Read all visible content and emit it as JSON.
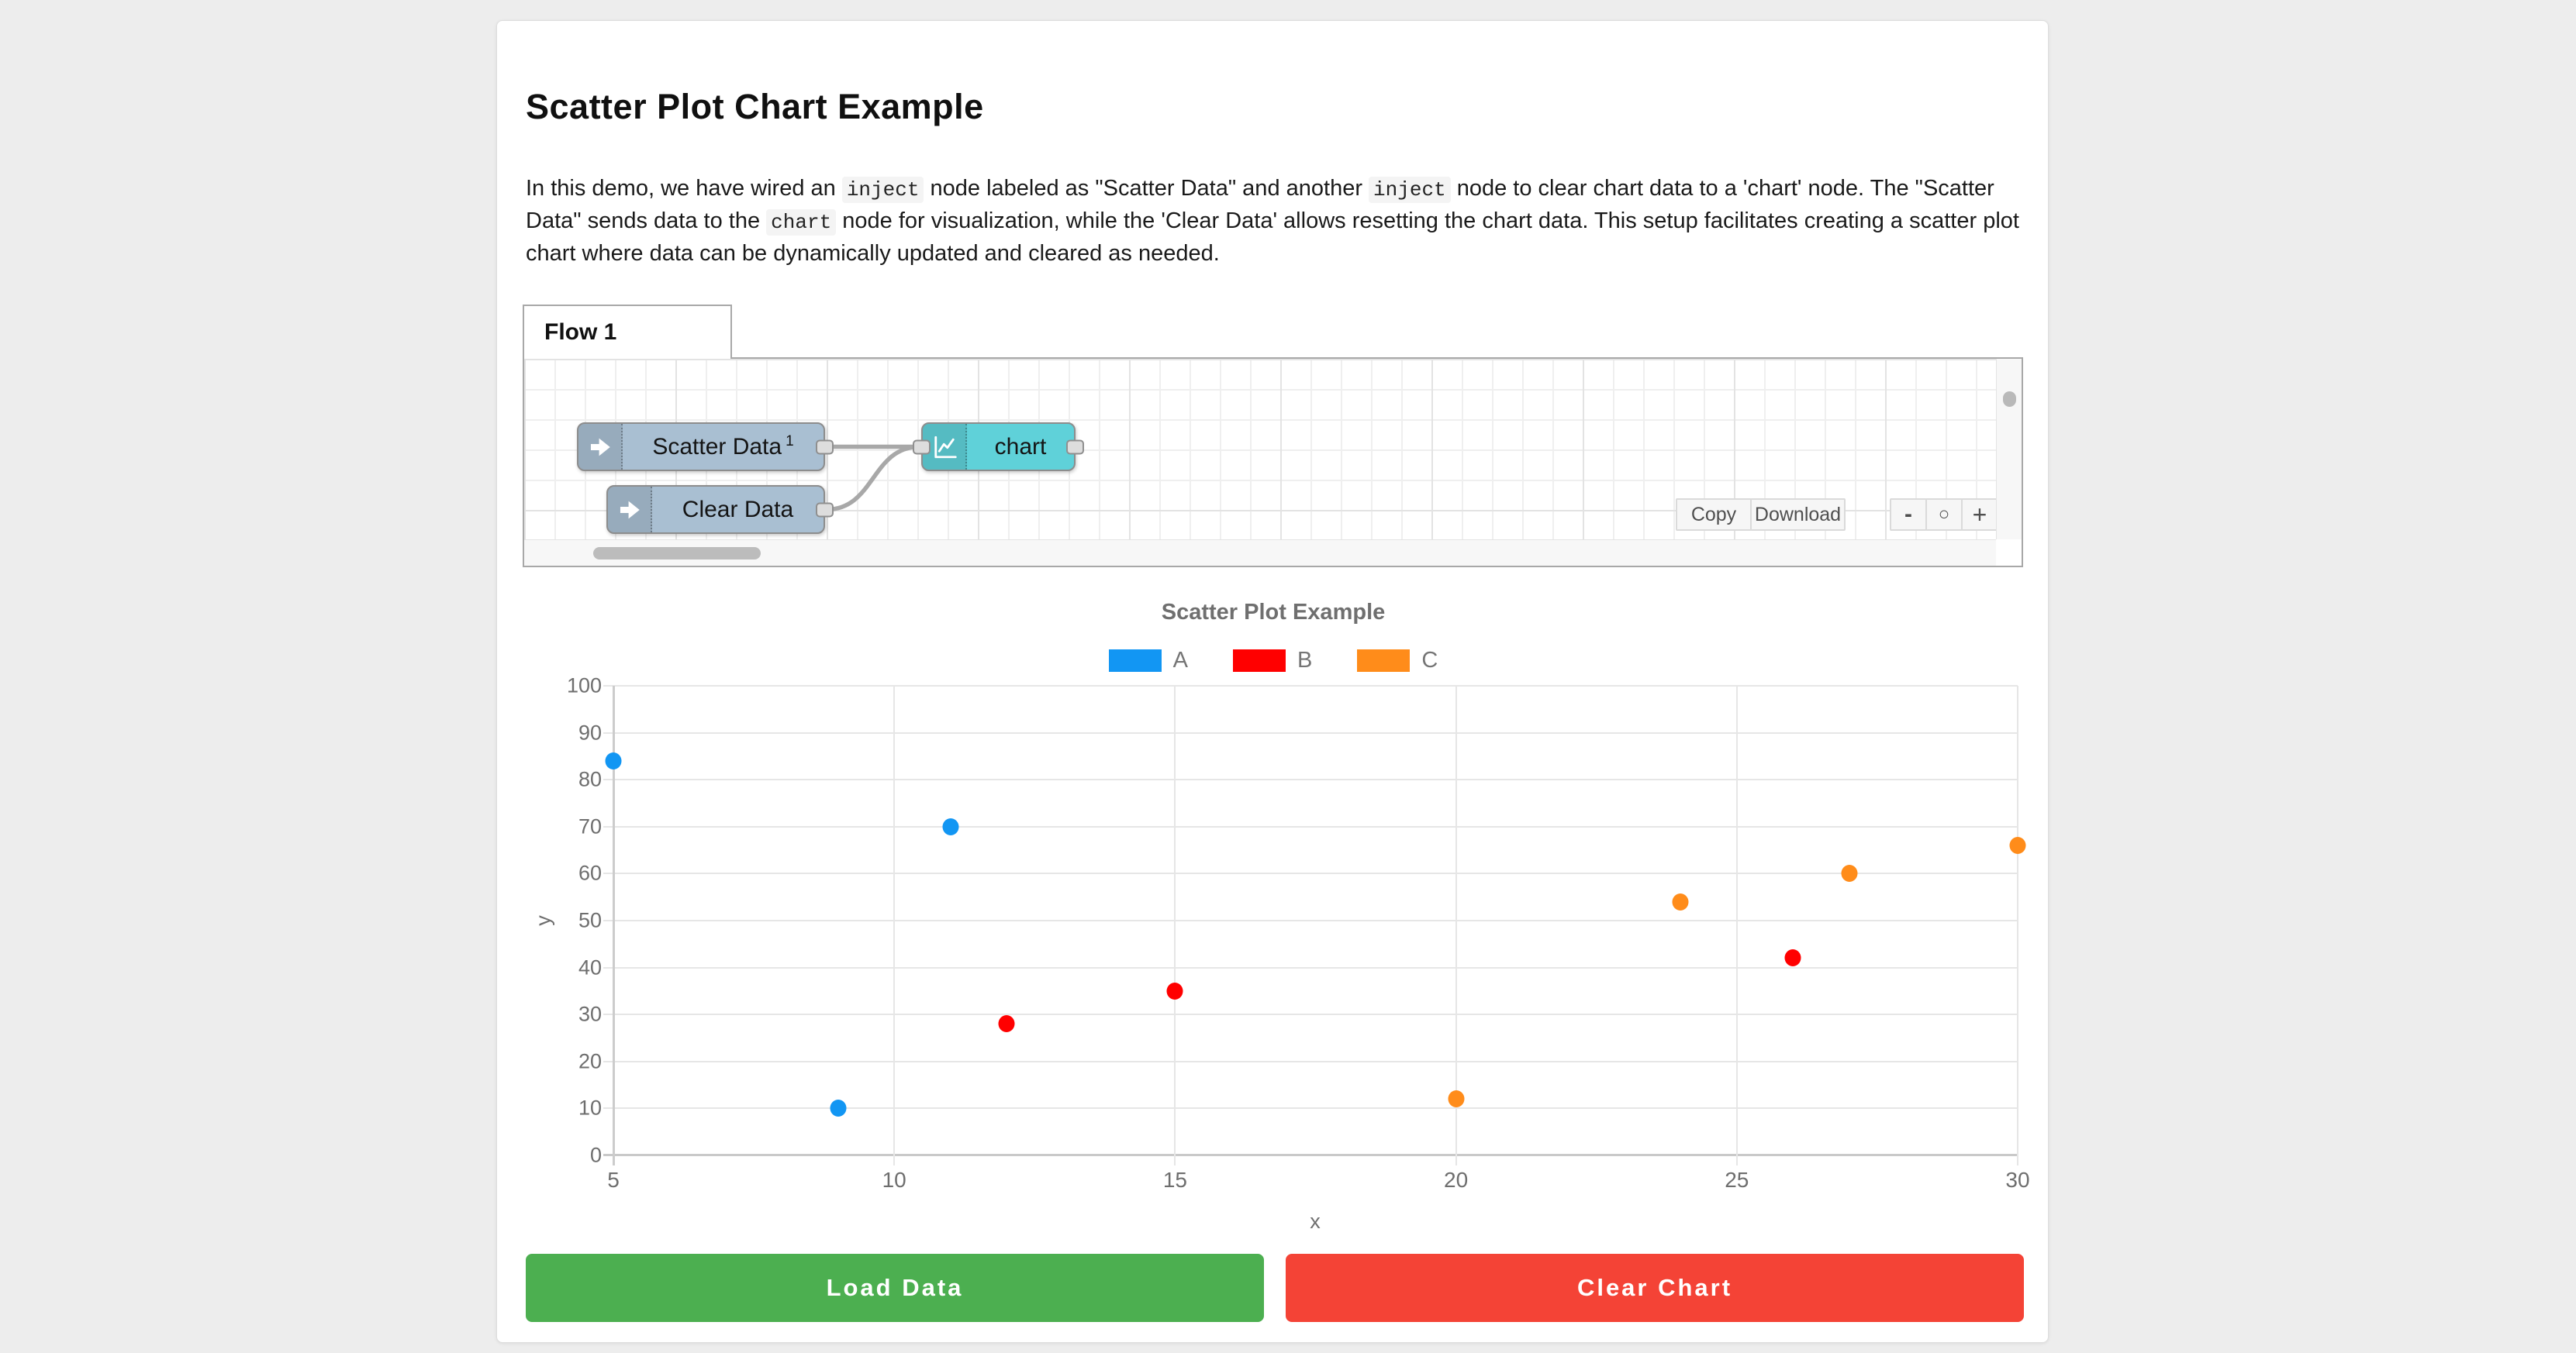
{
  "window": {
    "bg": "#ededed",
    "card_bg": "#ffffff"
  },
  "header": {
    "title": "Scatter Plot Chart Example"
  },
  "description": {
    "segments": [
      {
        "type": "text",
        "value": "In this demo, we have wired an "
      },
      {
        "type": "code",
        "value": "inject"
      },
      {
        "type": "text",
        "value": " node labeled as \"Scatter Data\" and another "
      },
      {
        "type": "code",
        "value": "inject"
      },
      {
        "type": "text",
        "value": " node to clear chart data to a 'chart' node. The \"Scatter Data\" sends data to the "
      },
      {
        "type": "code",
        "value": "chart"
      },
      {
        "type": "text",
        "value": " node for visualization, while the 'Clear Data' allows resetting the chart data. This setup facilitates creating a scatter plot chart where data can be dynamically updated and cleared as needed."
      }
    ]
  },
  "flow_panel": {
    "tab_label": "Flow 1",
    "nodes": {
      "scatter": {
        "label": "Scatter Data",
        "sup": "1",
        "color": "#a9bfd2",
        "type": "inject"
      },
      "clear": {
        "label": "Clear Data",
        "color": "#a9bfd2",
        "type": "inject"
      },
      "chart": {
        "label": "chart",
        "color": "#5fd1d9",
        "type": "chart"
      }
    },
    "toolbar": {
      "copy": "Copy",
      "download": "Download",
      "zoom_out": "-",
      "zoom_reset": "○",
      "zoom_in": "+"
    }
  },
  "chart_data": {
    "type": "scatter",
    "title": "Scatter Plot Example",
    "xlabel": "x",
    "ylabel": "y",
    "xlim": [
      5,
      30
    ],
    "ylim": [
      0,
      100
    ],
    "x_ticks": [
      5,
      10,
      15,
      20,
      25,
      30
    ],
    "y_ticks": [
      0,
      10,
      20,
      30,
      40,
      50,
      60,
      70,
      80,
      90,
      100
    ],
    "grid": true,
    "legend_position": "top",
    "series": [
      {
        "name": "A",
        "color": "#1296f3",
        "points": [
          [
            5,
            84
          ],
          [
            9,
            10
          ],
          [
            11,
            70
          ]
        ]
      },
      {
        "name": "B",
        "color": "#ff0000",
        "points": [
          [
            12,
            28
          ],
          [
            15,
            35
          ],
          [
            26,
            42
          ]
        ]
      },
      {
        "name": "C",
        "color": "#ff8c1a",
        "points": [
          [
            20,
            12
          ],
          [
            24,
            54
          ],
          [
            27,
            60
          ],
          [
            30,
            66
          ]
        ]
      }
    ]
  },
  "buttons": {
    "load": {
      "label": "Load Data",
      "color": "#4caf50"
    },
    "clear": {
      "label": "Clear Chart",
      "color": "#f44336"
    }
  }
}
